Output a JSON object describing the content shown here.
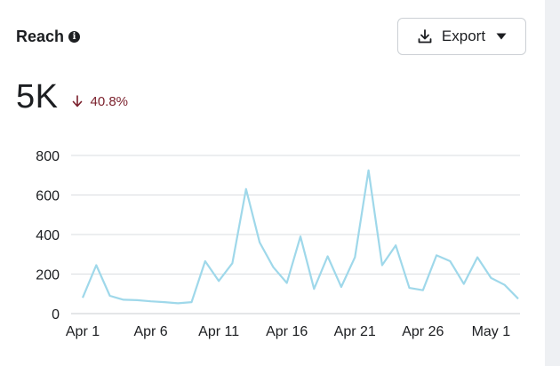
{
  "header": {
    "title": "Reach",
    "info_icon": "info-icon",
    "export_label": "Export",
    "export_icon": "download-icon",
    "export_caret_icon": "caret-down-icon"
  },
  "metric": {
    "value": "5K",
    "delta": "40.8%",
    "delta_direction": "down",
    "delta_color": "#7a1f2b"
  },
  "chart_data": {
    "type": "line",
    "title": "",
    "xlabel": "",
    "ylabel": "",
    "ylim": [
      0,
      800
    ],
    "yticks": [
      0,
      200,
      400,
      600,
      800
    ],
    "xticks": [
      "Apr 1",
      "Apr 6",
      "Apr 11",
      "Apr 16",
      "Apr 21",
      "Apr 26",
      "May 1"
    ],
    "grid": true,
    "line_color": "#9fd8ea",
    "series": [
      {
        "values": [
          80,
          245,
          90,
          70,
          68,
          62,
          58,
          52,
          58,
          265,
          165,
          255,
          630,
          360,
          235,
          155,
          390,
          125,
          290,
          135,
          285,
          725,
          245,
          345,
          130,
          118,
          295,
          265,
          150,
          285,
          180,
          145,
          75
        ]
      }
    ]
  }
}
